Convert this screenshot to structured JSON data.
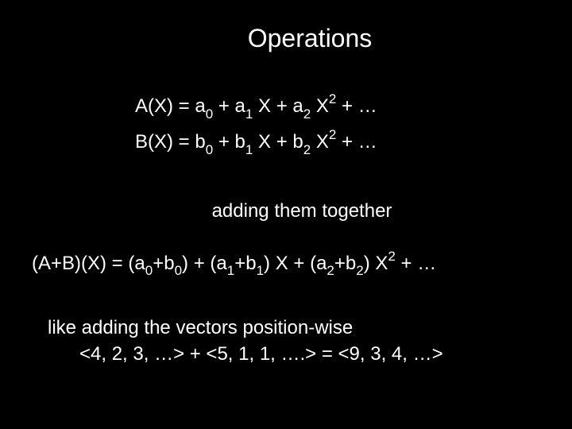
{
  "title": "Operations",
  "background_color": "#000000",
  "text_color": "#ffffff",
  "font_family": "Arial",
  "title_fontsize": 32,
  "body_fontsize": 24,
  "sub_sup_fontsize": 17,
  "polyA": {
    "lhs": "A(X) = ",
    "t0_coef": "a",
    "t0_sub": "0",
    "plus1": " + ",
    "t1_coef": "a",
    "t1_sub": "1",
    "t1_var": " X + ",
    "t2_coef": "a",
    "t2_sub": "2",
    "t2_var": " X",
    "t2_sup": "2",
    "tail": " + …"
  },
  "polyB": {
    "lhs": "B(X) = ",
    "t0_coef": "b",
    "t0_sub": "0",
    "plus1": " + ",
    "t1_coef": "b",
    "t1_sub": "1",
    "t1_var": " X + ",
    "t2_coef": "b",
    "t2_sub": "2",
    "t2_var": " X",
    "t2_sup": "2",
    "tail": " + …"
  },
  "adding_text": "adding them together",
  "sumPoly": {
    "lhs": "(A+B)(X) = (",
    "a0": "a",
    "a0_sub": "0",
    "plus0": "+",
    "b0": "b",
    "b0_sub": "0",
    "mid1": ") + (",
    "a1": "a",
    "a1_sub": "1",
    "plus1": "+",
    "b1": "b",
    "b1_sub": "1",
    "mid2": ") X + (",
    "a2": "a",
    "a2_sub": "2",
    "plus2": "+",
    "b2": "b",
    "b2_sub": "2",
    "mid3": ") X",
    "sup2": "2",
    "tail": " + …"
  },
  "vectors_label": "like adding the vectors position-wise",
  "vectors_eq": "<4, 2, 3, …> + <5, 1, 1, ….> = <9, 3, 4, …>"
}
